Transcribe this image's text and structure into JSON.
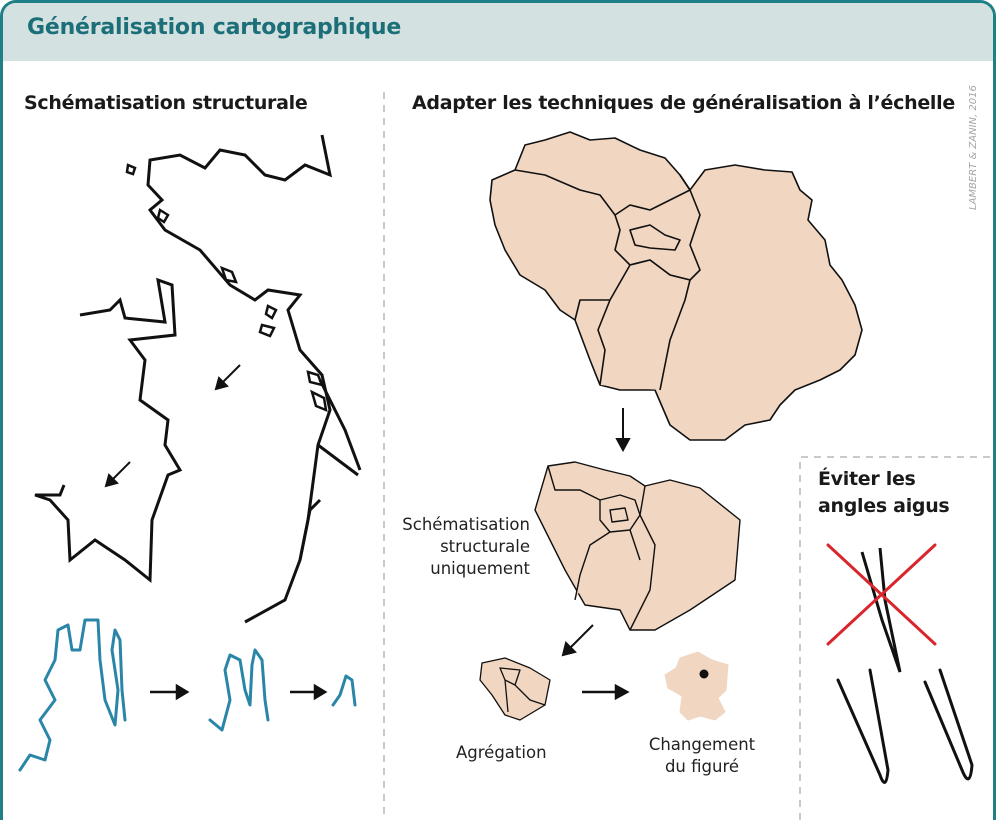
{
  "header": {
    "title": "Généralisation cartographique"
  },
  "sections": {
    "left_title": "Schématisation structurale",
    "right_title": "Adapter les techniques de généralisation à l’échelle"
  },
  "box": {
    "title_line1": "Éviter les",
    "title_line2": "angles aigus"
  },
  "labels": {
    "schematisation_line1": "Schématisation",
    "schematisation_line2": "structurale",
    "schematisation_line3": "uniquement",
    "agregation": "Agrégation",
    "changement_line1": "Changement",
    "changement_line2": "du figuré"
  },
  "credit": "LAMBERT & ZANIN, 2016",
  "colors": {
    "frame": "#1f7f86",
    "header_bg": "#d3e1e0",
    "header_text": "#1c6f78",
    "map_fill": "#f1d6c1",
    "river": "#2a86a8",
    "cross": "#d9262d",
    "dashed": "#c9c9c9"
  }
}
